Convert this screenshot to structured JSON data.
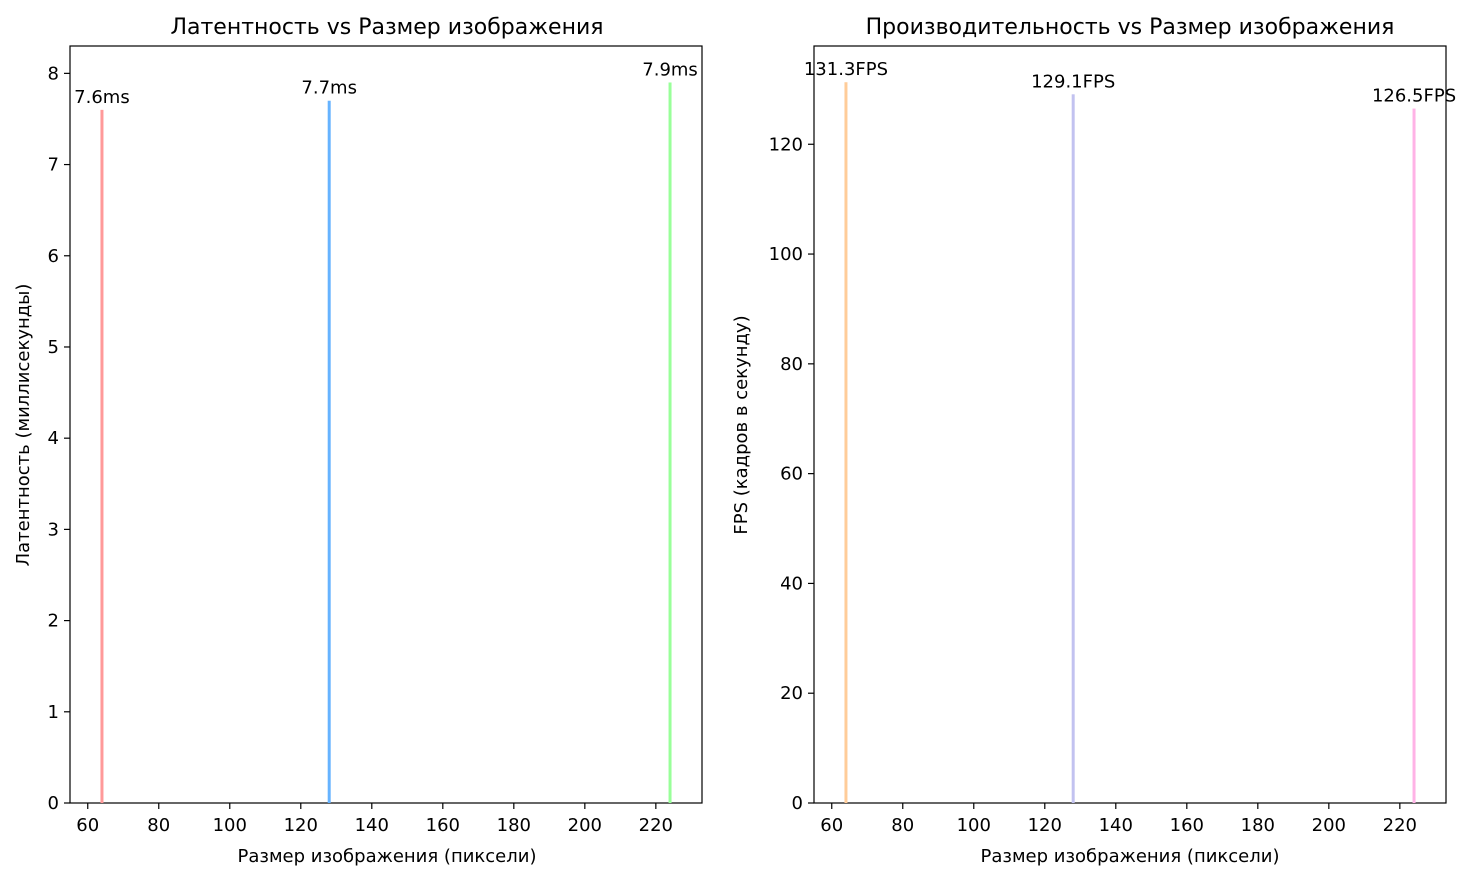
{
  "chart_data": [
    {
      "type": "bar",
      "title": "Латентность vs Размер изображения",
      "xlabel": "Размер изображения (пиксели)",
      "ylabel": "Латентность (миллисекунды)",
      "x": [
        64,
        128,
        224
      ],
      "values": [
        7.6,
        7.7,
        7.9
      ],
      "data_labels": [
        "7.6ms",
        "7.7ms",
        "7.9ms"
      ],
      "colors": [
        "#ff9999",
        "#66b3ff",
        "#99ff99"
      ],
      "xlim": [
        55,
        233
      ],
      "ylim": [
        0,
        8.3
      ],
      "xticks": [
        60,
        80,
        100,
        120,
        140,
        160,
        180,
        200,
        220
      ],
      "yticks": [
        0,
        1,
        2,
        3,
        4,
        5,
        6,
        7,
        8
      ],
      "grid": false
    },
    {
      "type": "bar",
      "title": "Производительность vs Размер изображения",
      "xlabel": "Размер изображения (пиксели)",
      "ylabel": "FPS (кадров в секунду)",
      "x": [
        64,
        128,
        224
      ],
      "values": [
        131.3,
        129.1,
        126.5
      ],
      "data_labels": [
        "131.3FPS",
        "129.1FPS",
        "126.5FPS"
      ],
      "colors": [
        "#ffcc99",
        "#c2c2f0",
        "#ffb3e6"
      ],
      "xlim": [
        55,
        233
      ],
      "ylim": [
        0,
        137.9
      ],
      "xticks": [
        60,
        80,
        100,
        120,
        140,
        160,
        180,
        200,
        220
      ],
      "yticks": [
        0,
        20,
        40,
        60,
        80,
        100,
        120
      ],
      "grid": false
    }
  ]
}
